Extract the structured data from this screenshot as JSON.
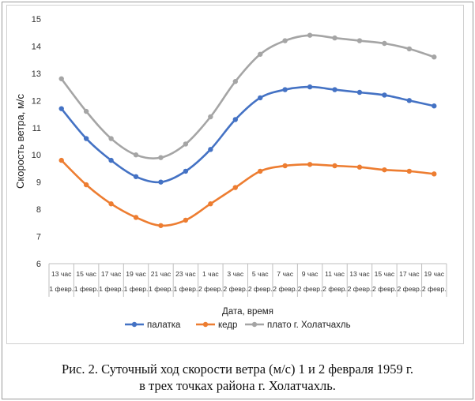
{
  "chart_data": {
    "type": "line",
    "title": "",
    "xlabel": "Дата, время",
    "ylabel": "Скорость ветра, м/с",
    "ylim": [
      6,
      15
    ],
    "yticks": [
      "6",
      "7",
      "8",
      "9",
      "10",
      "11",
      "12",
      "13",
      "14",
      "15"
    ],
    "categories": [
      {
        "time": "13 час",
        "date": "1 февр."
      },
      {
        "time": "15 час",
        "date": "1 февр."
      },
      {
        "time": "17 час",
        "date": "1 февр."
      },
      {
        "time": "19 час",
        "date": "1 февр."
      },
      {
        "time": "21 час",
        "date": "1 февр."
      },
      {
        "time": "23 час",
        "date": "1 февр."
      },
      {
        "time": "1 час",
        "date": "2 февр."
      },
      {
        "time": "3 час",
        "date": "2 февр."
      },
      {
        "time": "5 час",
        "date": "2 февр."
      },
      {
        "time": "7 час",
        "date": "2 февр."
      },
      {
        "time": "9 час",
        "date": "2 февр."
      },
      {
        "time": "11 час",
        "date": "2 февр."
      },
      {
        "time": "13 час",
        "date": "2 февр."
      },
      {
        "time": "15 час",
        "date": "2 февр."
      },
      {
        "time": "17 час",
        "date": "2 февр."
      },
      {
        "time": "19 час",
        "date": "2 февр."
      }
    ],
    "series": [
      {
        "name": "палатка",
        "color": "#4472c4",
        "values": [
          11.7,
          10.6,
          9.8,
          9.2,
          9.0,
          9.4,
          10.2,
          11.3,
          12.1,
          12.4,
          12.5,
          12.4,
          12.3,
          12.2,
          12.0,
          11.8
        ]
      },
      {
        "name": "кедр",
        "color": "#ed7d31",
        "values": [
          9.8,
          8.9,
          8.2,
          7.7,
          7.4,
          7.6,
          8.2,
          8.8,
          9.4,
          9.6,
          9.65,
          9.6,
          9.55,
          9.45,
          9.4,
          9.3
        ]
      },
      {
        "name": "плато г. Холатчахль",
        "color": "#a5a5a5",
        "values": [
          12.8,
          11.6,
          10.6,
          10.0,
          9.9,
          10.4,
          11.4,
          12.7,
          13.7,
          14.2,
          14.4,
          14.3,
          14.2,
          14.1,
          13.9,
          13.6
        ]
      }
    ],
    "grid": false,
    "legend": "bottom"
  },
  "caption": {
    "line1": "Рис. 2. Суточный ход скорости ветра (м/с) 1 и 2 февраля 1959 г.",
    "line2": "в трех точках района г. Холатчахль."
  }
}
